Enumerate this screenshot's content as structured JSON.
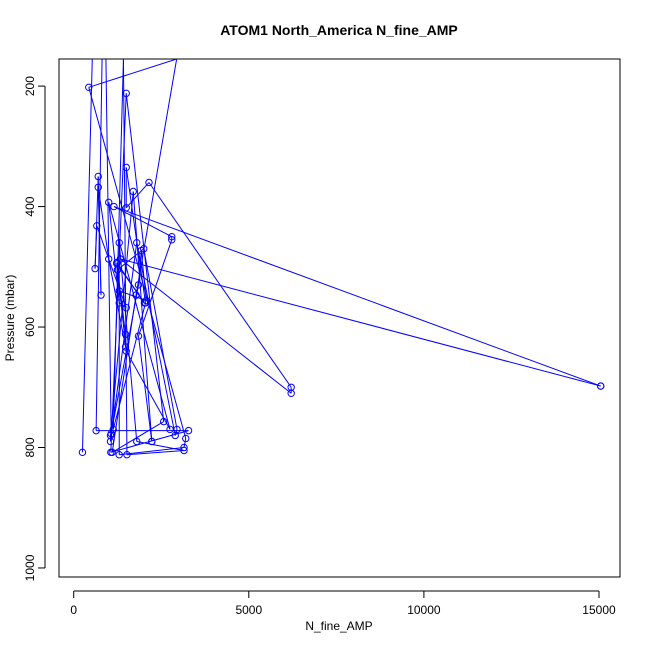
{
  "chart_data": {
    "type": "line",
    "title": "ATOM1 North_America N_fine_AMP",
    "xlabel": "N_fine_AMP",
    "ylabel": "Pressure (mbar)",
    "xlim": [
      -420,
      15600
    ],
    "ylim": [
      1015,
      155
    ],
    "y_reversed": true,
    "x_ticks": [
      0,
      5000,
      10000,
      15000
    ],
    "y_ticks": [
      200,
      400,
      600,
      800,
      1000
    ],
    "grid": false,
    "legend": "none",
    "series": [
      {
        "style": "both",
        "marker": "open-circle",
        "color": "#0000FF",
        "points": [
          [
            250,
            808
          ],
          [
            530,
            155
          ],
          [
            810,
            155
          ],
          [
            640,
            772
          ],
          [
            3280,
            772
          ],
          [
            1060,
            808
          ],
          [
            1500,
            212
          ],
          [
            2570,
            757
          ],
          [
            1100,
            808
          ],
          [
            1780,
            547
          ],
          [
            2940,
            155
          ],
          [
            430,
            202
          ],
          [
            3200,
            785
          ],
          [
            3150,
            800
          ],
          [
            1300,
            812
          ],
          [
            1300,
            460
          ],
          [
            1800,
            790
          ],
          [
            3150,
            805
          ],
          [
            1520,
            812
          ],
          [
            1420,
            155
          ],
          [
            1130,
            770
          ],
          [
            2050,
            560
          ],
          [
            1500,
            335
          ],
          [
            1500,
            402
          ],
          [
            2150,
            360
          ],
          [
            6210,
            700
          ],
          [
            6210,
            710
          ],
          [
            1330,
            487
          ],
          [
            15050,
            698
          ],
          [
            15050,
            698
          ],
          [
            1150,
            400
          ],
          [
            2800,
            450
          ],
          [
            2800,
            455
          ],
          [
            1850,
            615
          ],
          [
            2230,
            790
          ],
          [
            2230,
            790
          ],
          [
            1700,
            375
          ],
          [
            1050,
            780
          ],
          [
            1050,
            790
          ],
          [
            1800,
            460
          ],
          [
            2900,
            780
          ],
          [
            2950,
            770
          ],
          [
            2000,
            470
          ],
          [
            1250,
            505
          ],
          [
            1250,
            505
          ],
          [
            1500,
            640
          ],
          [
            2750,
            770
          ],
          [
            1000,
            393
          ],
          [
            1300,
            560
          ],
          [
            1500,
            568
          ],
          [
            660,
            432
          ],
          [
            610,
            503
          ],
          [
            700,
            350
          ],
          [
            780,
            547
          ],
          [
            700,
            368
          ],
          [
            1000,
            487
          ],
          [
            1480,
            633
          ],
          [
            1480,
            612
          ],
          [
            1230,
            493
          ],
          [
            2020,
            560
          ],
          [
            1230,
            495
          ],
          [
            1300,
            540
          ],
          [
            2070,
            556
          ],
          [
            1930,
            473
          ],
          [
            1850,
            530
          ],
          [
            1070,
            777
          ],
          [
            920,
            155
          ]
        ]
      }
    ]
  }
}
